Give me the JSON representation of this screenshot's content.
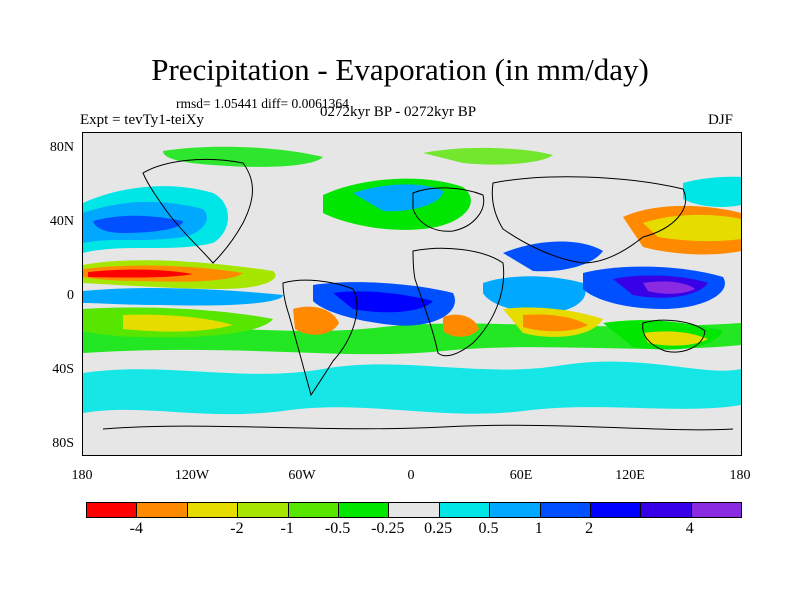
{
  "title": "Precipitation - Evaporation (in mm/day)",
  "stats_line": "rmsd= 1.05441 diff= 0.0061364",
  "left_label": "Expt = tevTy1-teiXy",
  "center_label": "0272kyr BP - 0272kyr BP",
  "right_label": "DJF",
  "lat_ticks": [
    "80N",
    "40N",
    "0",
    "40S",
    "80S"
  ],
  "lon_ticks": [
    "180",
    "120W",
    "60W",
    "0",
    "60E",
    "120E",
    "180"
  ],
  "colorbar": {
    "colors": [
      "#ff0000",
      "#ff8a00",
      "#e6dc00",
      "#a6e600",
      "#56e600",
      "#00e600",
      "#e6e6e6",
      "#00e6e6",
      "#00a8ff",
      "#0050ff",
      "#0000ff",
      "#3800e6",
      "#8a2be2"
    ],
    "labels": [
      "-4",
      "-2",
      "-1",
      "-0.5",
      "-0.25",
      "0.25",
      "0.5",
      "1",
      "2",
      "4"
    ]
  }
}
